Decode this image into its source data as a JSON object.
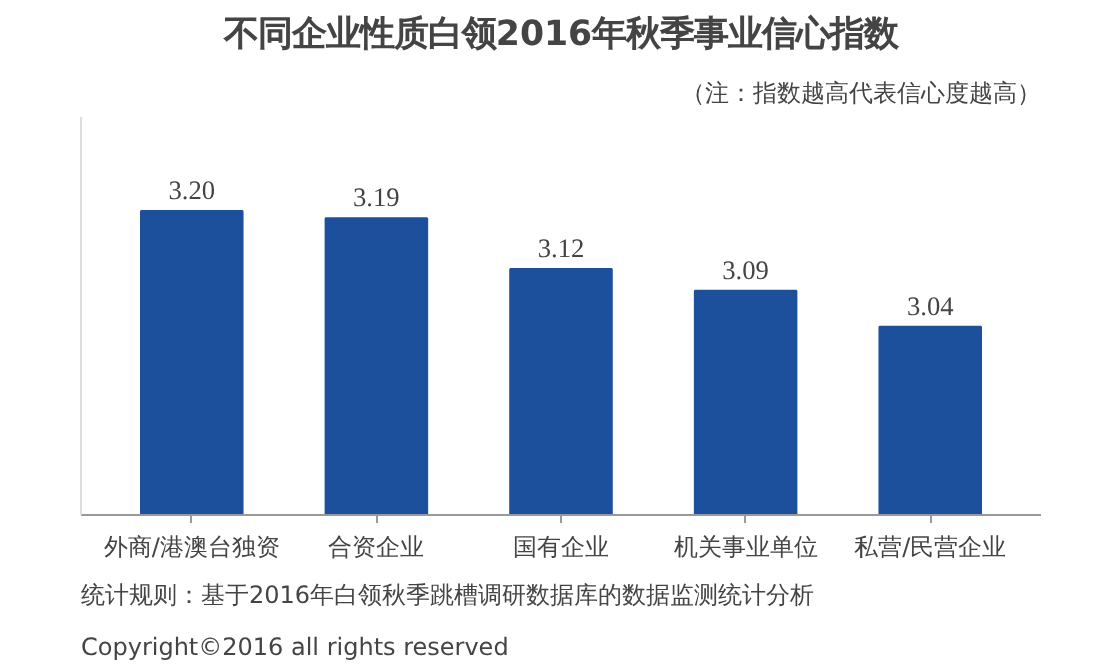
{
  "chart_data": {
    "type": "bar",
    "title": "不同企业性质白领2016年秋季事业信心指数",
    "subtitle": "（注：指数越高代表信心度越高）",
    "categories": [
      "外商/港澳台独资",
      "合资企业",
      "国有企业",
      "机关事业单位",
      "私营/民营企业"
    ],
    "values": [
      3.2,
      3.19,
      3.12,
      3.09,
      3.04
    ],
    "value_labels": [
      "3.20",
      "3.19",
      "3.12",
      "3.09",
      "3.04"
    ],
    "color": "#1c4f9c",
    "ylim": [
      2.78,
      3.33
    ],
    "tick_labels": "x",
    "grid": false,
    "annotations": [
      "统计规则：基于2016年白领秋季跳槽调研数据库的数据监测统计分析",
      "Copyright©2016 all rights reserved"
    ]
  }
}
